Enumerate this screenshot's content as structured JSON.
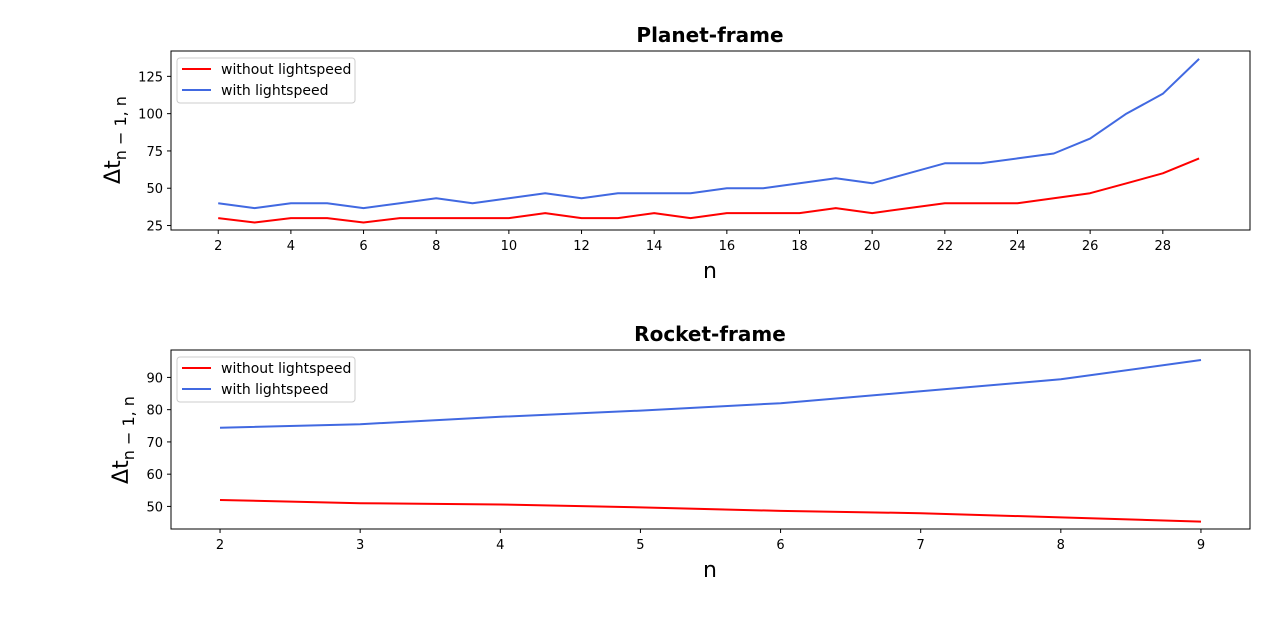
{
  "chart_data": [
    {
      "type": "line",
      "title": "Planet-frame",
      "xlabel": "n",
      "ylabel": "Δt",
      "ylabel_sub": "n − 1, n",
      "xlim": [
        0.7,
        30.4
      ],
      "ylim": [
        22,
        142
      ],
      "xticks": [
        2,
        4,
        6,
        8,
        10,
        12,
        14,
        16,
        18,
        20,
        22,
        24,
        26,
        28
      ],
      "yticks": [
        25,
        50,
        75,
        100,
        125
      ],
      "legend_position": "upper-left",
      "x": [
        2,
        3,
        4,
        5,
        6,
        7,
        8,
        9,
        10,
        11,
        12,
        13,
        14,
        15,
        16,
        17,
        18,
        19,
        20,
        21,
        22,
        23,
        24,
        25,
        26,
        27,
        28,
        29
      ],
      "series": [
        {
          "name": "without lightspeed",
          "color": "#ff0000",
          "values": [
            30,
            27,
            30,
            30,
            27,
            30,
            30,
            30,
            30,
            33.3,
            30,
            30,
            33.3,
            30,
            33.3,
            33.3,
            33.3,
            36.7,
            33.3,
            36.7,
            40,
            40,
            40,
            43.3,
            46.7,
            53.3,
            60,
            70
          ]
        },
        {
          "name": "with lightspeed",
          "color": "#4169e1",
          "values": [
            40,
            36.7,
            40,
            40,
            36.7,
            40,
            43.3,
            40,
            43.3,
            46.7,
            43.3,
            46.7,
            46.7,
            46.7,
            50,
            50,
            53.3,
            56.7,
            53.3,
            60,
            66.7,
            66.7,
            70,
            73.3,
            83.3,
            100,
            113.3,
            136.7
          ]
        }
      ]
    },
    {
      "type": "line",
      "title": "Rocket-frame",
      "xlabel": "n",
      "ylabel": "Δt",
      "ylabel_sub": "n − 1, n",
      "xlim": [
        1.65,
        9.35
      ],
      "ylim": [
        43,
        98.5
      ],
      "xticks": [
        2,
        3,
        4,
        5,
        6,
        7,
        8,
        9
      ],
      "yticks": [
        50,
        60,
        70,
        80,
        90
      ],
      "legend_position": "upper-left",
      "x": [
        2,
        3,
        4,
        5,
        6,
        7,
        8,
        9
      ],
      "series": [
        {
          "name": "without lightspeed",
          "color": "#ff0000",
          "values": [
            52,
            51,
            50.6,
            49.7,
            48.6,
            47.9,
            46.6,
            45.3
          ]
        },
        {
          "name": "with lightspeed",
          "color": "#4169e1",
          "values": [
            74.4,
            75.5,
            77.8,
            79.7,
            82,
            85.7,
            89.4,
            95.4
          ]
        }
      ]
    }
  ]
}
